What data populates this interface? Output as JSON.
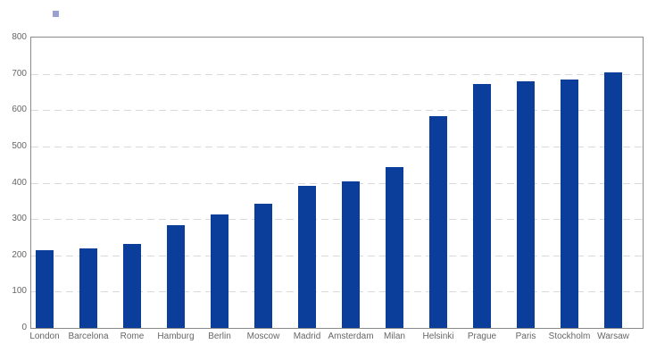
{
  "legend": {
    "marker_color": "#9aa0cf",
    "position": "top-left",
    "label": ""
  },
  "chart_data": {
    "type": "bar",
    "title": "",
    "xlabel": "",
    "ylabel": "",
    "categories": [
      "London",
      "Barcelona",
      "Rome",
      "Hamburg",
      "Berlin",
      "Moscow",
      "Madrid",
      "Amsterdam",
      "Milan",
      "Helsinki",
      "Prague",
      "Paris",
      "Stockholm",
      "Warsaw"
    ],
    "values": [
      213,
      218,
      232,
      284,
      313,
      341,
      392,
      403,
      443,
      583,
      673,
      680,
      684,
      704
    ],
    "ylim": [
      0,
      800
    ],
    "yticks": [
      0,
      100,
      200,
      300,
      400,
      500,
      600,
      700,
      800
    ],
    "grid": "horizontal-dashed",
    "legend_position": "top-left",
    "bar_color": "#0b3d9b",
    "gridline_color": "#d9d9d9",
    "axis_frame_color": "#8a8a8a",
    "tick_label_color": "#666666"
  }
}
